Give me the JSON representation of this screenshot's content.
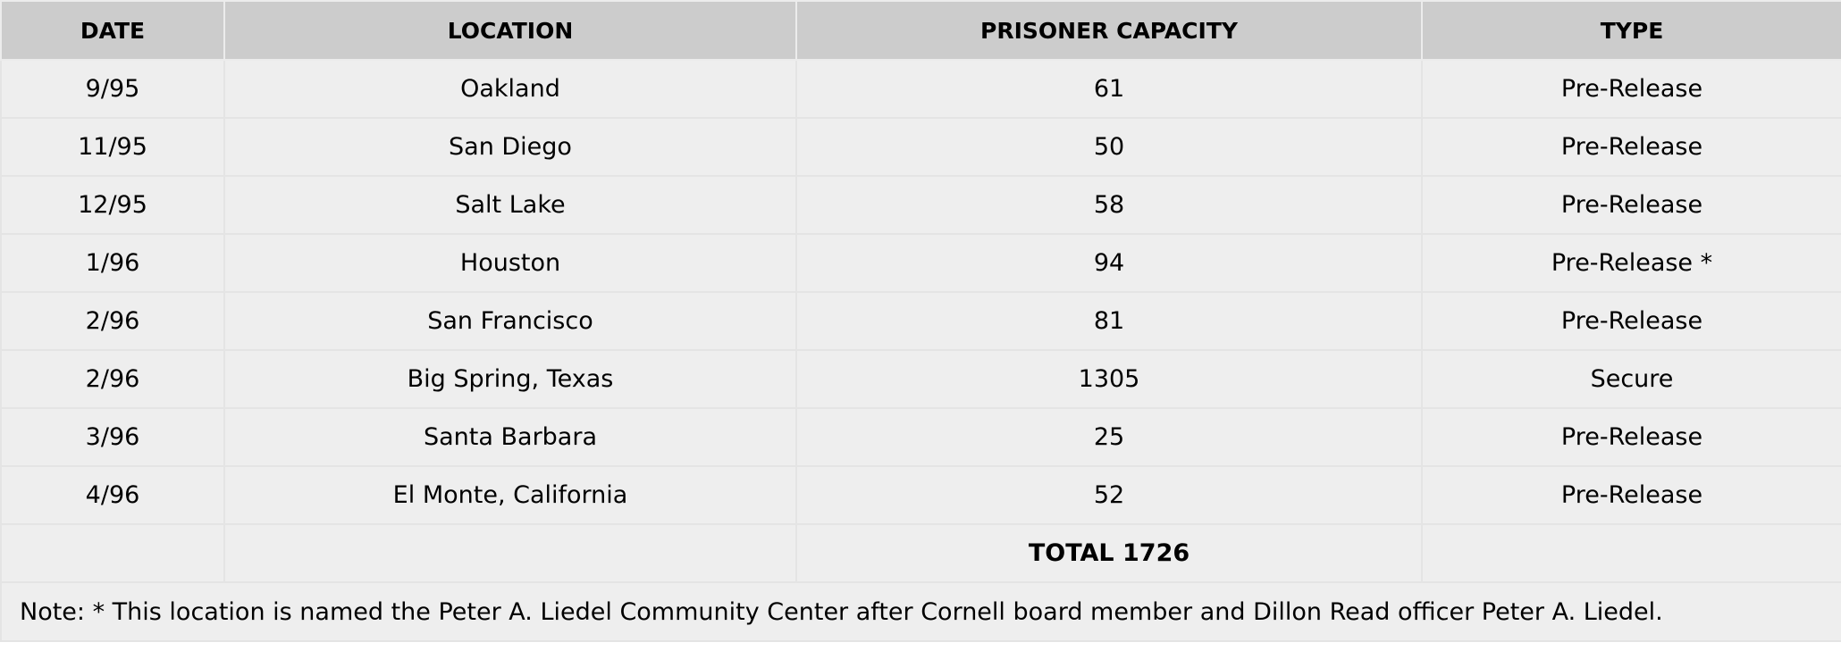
{
  "table": {
    "headers": [
      "DATE",
      "LOCATION",
      "PRISONER CAPACITY",
      "TYPE"
    ],
    "rows": [
      [
        "9/95",
        "Oakland",
        "61",
        "Pre-Release"
      ],
      [
        "11/95",
        "San Diego",
        "50",
        "Pre-Release"
      ],
      [
        "12/95",
        "Salt Lake",
        "58",
        "Pre-Release"
      ],
      [
        "1/96",
        "Houston",
        "94",
        "Pre-Release *"
      ],
      [
        "2/96",
        "San Francisco",
        "81",
        "Pre-Release"
      ],
      [
        "2/96",
        "Big Spring, Texas",
        "1305",
        "Secure"
      ],
      [
        "3/96",
        "Santa Barbara",
        "25",
        "Pre-Release"
      ],
      [
        "4/96",
        "El Monte, California",
        "52",
        "Pre-Release"
      ]
    ],
    "total": "TOTAL 1726",
    "note": "Note: * This location is named the Peter A. Liedel Community Center after Cornell board member and Dillon Read officer Peter A. Liedel."
  }
}
